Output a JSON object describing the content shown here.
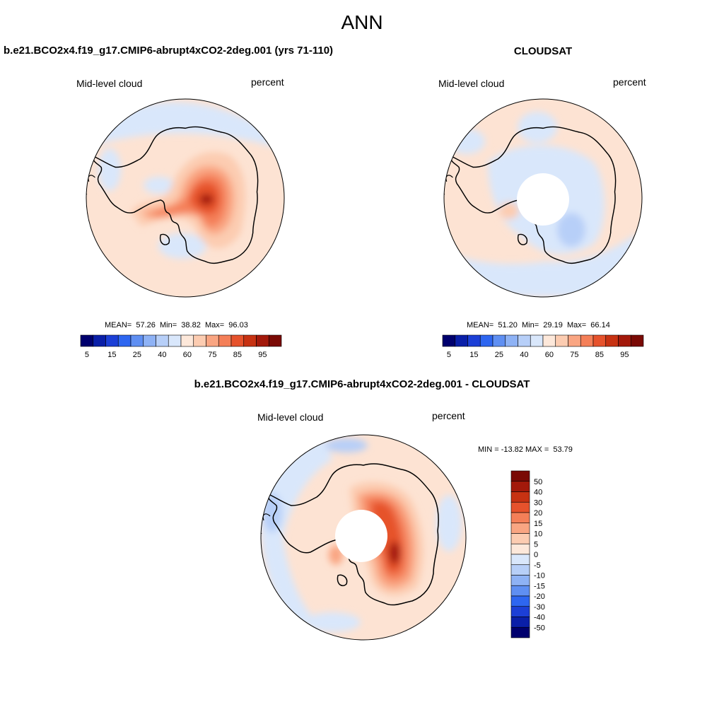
{
  "figure": {
    "season": "ANN",
    "panel_left_title": "b.e21.BCO2x4.f19_g17.CMIP6-abrupt4xCO2-2deg.001 (yrs 71-110)",
    "panel_right_title": "CLOUDSAT",
    "panel_diff_title": "b.e21.BCO2x4.f19_g17.CMIP6-abrupt4xCO2-2deg.001 - CLOUDSAT"
  },
  "colors": {
    "ocean_light_red": "#fde3d3",
    "light_blue": "#d6e6fb",
    "coast": "#000000"
  },
  "chart_data": [
    {
      "type": "heatmap",
      "projection": "south-polar-stereographic",
      "panel": "model",
      "variable": "Mid-level cloud",
      "units": "percent",
      "stats": {
        "mean": "57.26",
        "min": "38.82",
        "max": "96.03"
      },
      "stats_labels": {
        "mean": "MEAN=",
        "min": "Min=",
        "max": "Max="
      },
      "contour_levels": [
        5,
        10,
        15,
        20,
        25,
        30,
        40,
        50,
        60,
        65,
        70,
        75,
        80,
        85,
        90,
        95
      ],
      "colorbar_tick_labels": [
        "5",
        "15",
        "25",
        "40",
        "60",
        "75",
        "85",
        "95"
      ],
      "colorbar_colors": [
        "#00006e",
        "#0a1fa8",
        "#1c3fd6",
        "#2e66f0",
        "#5f8ff2",
        "#8eb2f5",
        "#b7cff8",
        "#d9e7fb",
        "#fde8da",
        "#fcccb1",
        "#f9a582",
        "#f47f58",
        "#e6522c",
        "#c73212",
        "#a3190b",
        "#7a0a05"
      ],
      "field_summary": "Mostly 50-60% over Southern Ocean; high values (75-96%) over East Antarctic plateau; lower values (40-50%) in Weddell and Ross sea sectors"
    },
    {
      "type": "heatmap",
      "projection": "south-polar-stereographic",
      "panel": "obs",
      "variable": "Mid-level cloud",
      "units": "percent",
      "stats": {
        "mean": "51.20",
        "min": "29.19",
        "max": "66.14"
      },
      "stats_labels": {
        "mean": "MEAN=",
        "min": "Min=",
        "max": "Max="
      },
      "contour_levels": [
        5,
        10,
        15,
        20,
        25,
        30,
        40,
        50,
        60,
        65,
        70,
        75,
        80,
        85,
        90,
        95
      ],
      "colorbar_tick_labels": [
        "5",
        "15",
        "25",
        "40",
        "60",
        "75",
        "85",
        "95"
      ],
      "colorbar_colors": [
        "#00006e",
        "#0a1fa8",
        "#1c3fd6",
        "#2e66f0",
        "#5f8ff2",
        "#8eb2f5",
        "#b7cff8",
        "#d9e7fb",
        "#fde8da",
        "#fcccb1",
        "#f9a582",
        "#f47f58",
        "#e6522c",
        "#c73212",
        "#a3190b",
        "#7a0a05"
      ],
      "missing_region": "pole cap (no data)",
      "field_summary": "Mostly 50-60% over ocean; 40-50% over much of Antarctica and sea-ice zone; ~30-40% patch near Wilkes Land"
    },
    {
      "type": "heatmap",
      "projection": "south-polar-stereographic",
      "panel": "difference",
      "variable": "Mid-level cloud",
      "units": "percent",
      "stats": {
        "min": "-13.82",
        "max": "53.79"
      },
      "stats_text": "MIN = -13.82 MAX =  53.79",
      "contour_levels": [
        -50,
        -40,
        -30,
        -20,
        -15,
        -10,
        -5,
        0,
        5,
        10,
        15,
        20,
        30,
        40,
        50
      ],
      "colorbar_tick_labels": [
        "50",
        "40",
        "30",
        "20",
        "15",
        "10",
        "5",
        "0",
        "-5",
        "-10",
        "-15",
        "-20",
        "-30",
        "-40",
        "-50"
      ],
      "colorbar_colors": [
        "#7a0a05",
        "#a3190b",
        "#c73212",
        "#e6522c",
        "#f47f58",
        "#f9a582",
        "#fcccb1",
        "#fde8da",
        "#d9e7fb",
        "#b7cff8",
        "#8eb2f5",
        "#5f8ff2",
        "#2e66f0",
        "#1c3fd6",
        "#0a1fa8",
        "#00006e"
      ],
      "missing_region": "pole cap (no data)",
      "field_summary": "Mostly 0-5% over ocean; strong positive bias (20-54%) over East Antarctica; slight negative (-5 to -10%) west of Antarctic Peninsula"
    }
  ]
}
